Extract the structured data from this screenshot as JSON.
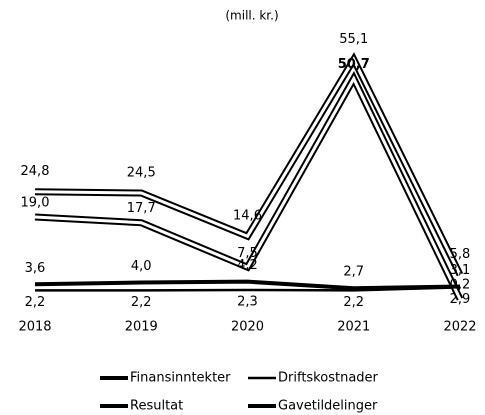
{
  "chart_data": {
    "type": "line",
    "subtitle": "(mill. kr.)",
    "categories": [
      "2018",
      "2019",
      "2020",
      "2021",
      "2022"
    ],
    "ylim": [
      0,
      60
    ],
    "grid": false,
    "legend": "bottom",
    "series": [
      {
        "name": "Finansinntekter",
        "color": "#000000",
        "style": "double",
        "values": [
          24.8,
          24.5,
          14.6,
          55.1,
          5.8
        ],
        "value_labels": [
          "24,8",
          "24,5",
          "14,6",
          "55,1",
          "5,8"
        ]
      },
      {
        "name": "Driftskostnader",
        "color": "#000000",
        "style": "thin",
        "values": [
          2.2,
          2.2,
          2.3,
          2.2,
          2.9
        ],
        "value_labels": [
          "2,2",
          "2,2",
          "2,3",
          "2,2",
          "2,9"
        ]
      },
      {
        "name": "Resultat",
        "color": "#000000",
        "style": "double",
        "values": [
          19.0,
          17.7,
          7.5,
          50.7,
          0.2
        ],
        "value_labels": [
          "19,0",
          "17,7",
          "7,5",
          "50,7",
          "0,2"
        ]
      },
      {
        "name": "Gavetildelinger",
        "color": "#000000",
        "style": "thick",
        "values": [
          3.6,
          4.0,
          4.2,
          2.7,
          3.1
        ],
        "value_labels": [
          "3,6",
          "4,0",
          "4,2",
          "2,7",
          "3,1"
        ]
      }
    ]
  }
}
